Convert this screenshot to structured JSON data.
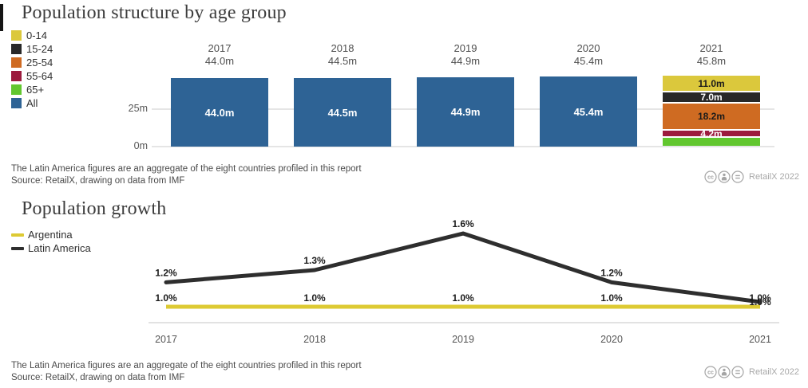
{
  "page": {
    "footnote_line1": "The Latin America figures are an aggregate of the eight countries profiled in this report",
    "footnote_line2": "Source: RetailX, drawing on data from IMF",
    "credit": "RetailX 2022",
    "license_icons": [
      "cc-icon",
      "by-person-icon",
      "nd-equals-icon"
    ]
  },
  "colors": {
    "bar_blue": "#2e6395",
    "yellow": "#dbc83c",
    "black": "#282828",
    "orange": "#cf6b22",
    "crimson": "#9c1b3e",
    "green": "#62c72f",
    "gridline": "#e5e5e5",
    "axis_text": "#555555",
    "label_text": "#1b1b1b"
  },
  "chart_data": [
    {
      "type": "bar",
      "title": "Population structure by age group",
      "legend": [
        {
          "label": "0-14",
          "color": "#dbc83c"
        },
        {
          "label": "15-24",
          "color": "#282828"
        },
        {
          "label": "25-54",
          "color": "#cf6b22"
        },
        {
          "label": "55-64",
          "color": "#9c1b3e"
        },
        {
          "label": "65+",
          "color": "#62c72f"
        },
        {
          "label": "All",
          "color": "#2e6395"
        }
      ],
      "categories": [
        "2017",
        "2018",
        "2019",
        "2020",
        "2021"
      ],
      "totals_m": [
        44.0,
        44.5,
        44.9,
        45.4,
        45.8
      ],
      "totals_label": [
        "44.0m",
        "44.5m",
        "44.9m",
        "45.4m",
        "45.8m"
      ],
      "all_bar_color": "#2e6395",
      "stacked_final_year": {
        "year": "2021",
        "total_m": 45.8,
        "segments": [
          {
            "group": "0-14",
            "value_m": 11.0,
            "label": "11.0m",
            "color": "#dbc83c",
            "text_color": "#1a1a1a"
          },
          {
            "group": "15-24",
            "value_m": 7.0,
            "label": "7.0m",
            "color": "#282828",
            "text_color": "#ffffff"
          },
          {
            "group": "25-54",
            "value_m": 18.2,
            "label": "18.2m",
            "color": "#cf6b22",
            "text_color": "#1a1a1a"
          },
          {
            "group": "55-64",
            "value_m": 4.2,
            "label": "4.2m",
            "color": "#9c1b3e",
            "text_color": "#ffffff"
          },
          {
            "group": "65+",
            "value_m": 5.4,
            "label": "",
            "color": "#62c72f",
            "text_color": "#1a1a1a"
          }
        ]
      },
      "yticks": [
        "25m",
        "0m"
      ],
      "ylim_m": [
        0,
        47
      ],
      "grid": "horizontal",
      "legend_position": "top-left"
    },
    {
      "type": "line",
      "title": "Population growth",
      "x": [
        "2017",
        "2018",
        "2019",
        "2020",
        "2021"
      ],
      "series": [
        {
          "name": "Argentina",
          "color": "#ddca33",
          "values_pct": [
            1.0,
            1.0,
            1.0,
            1.0,
            1.0
          ],
          "labels": [
            "1.0%",
            "1.0%",
            "1.0%",
            "1.0%",
            "1.0%"
          ]
        },
        {
          "name": "Latin America",
          "color": "#2e2e2e",
          "values_pct": [
            1.2,
            1.3,
            1.6,
            1.2,
            1.0
          ],
          "labels": [
            "1.2%",
            "1.3%",
            "1.6%",
            "1.2%",
            "1.0%"
          ]
        }
      ],
      "ylim_pct": [
        0.9,
        1.7
      ],
      "grid": "baseline-only",
      "legend_position": "top-left"
    }
  ]
}
